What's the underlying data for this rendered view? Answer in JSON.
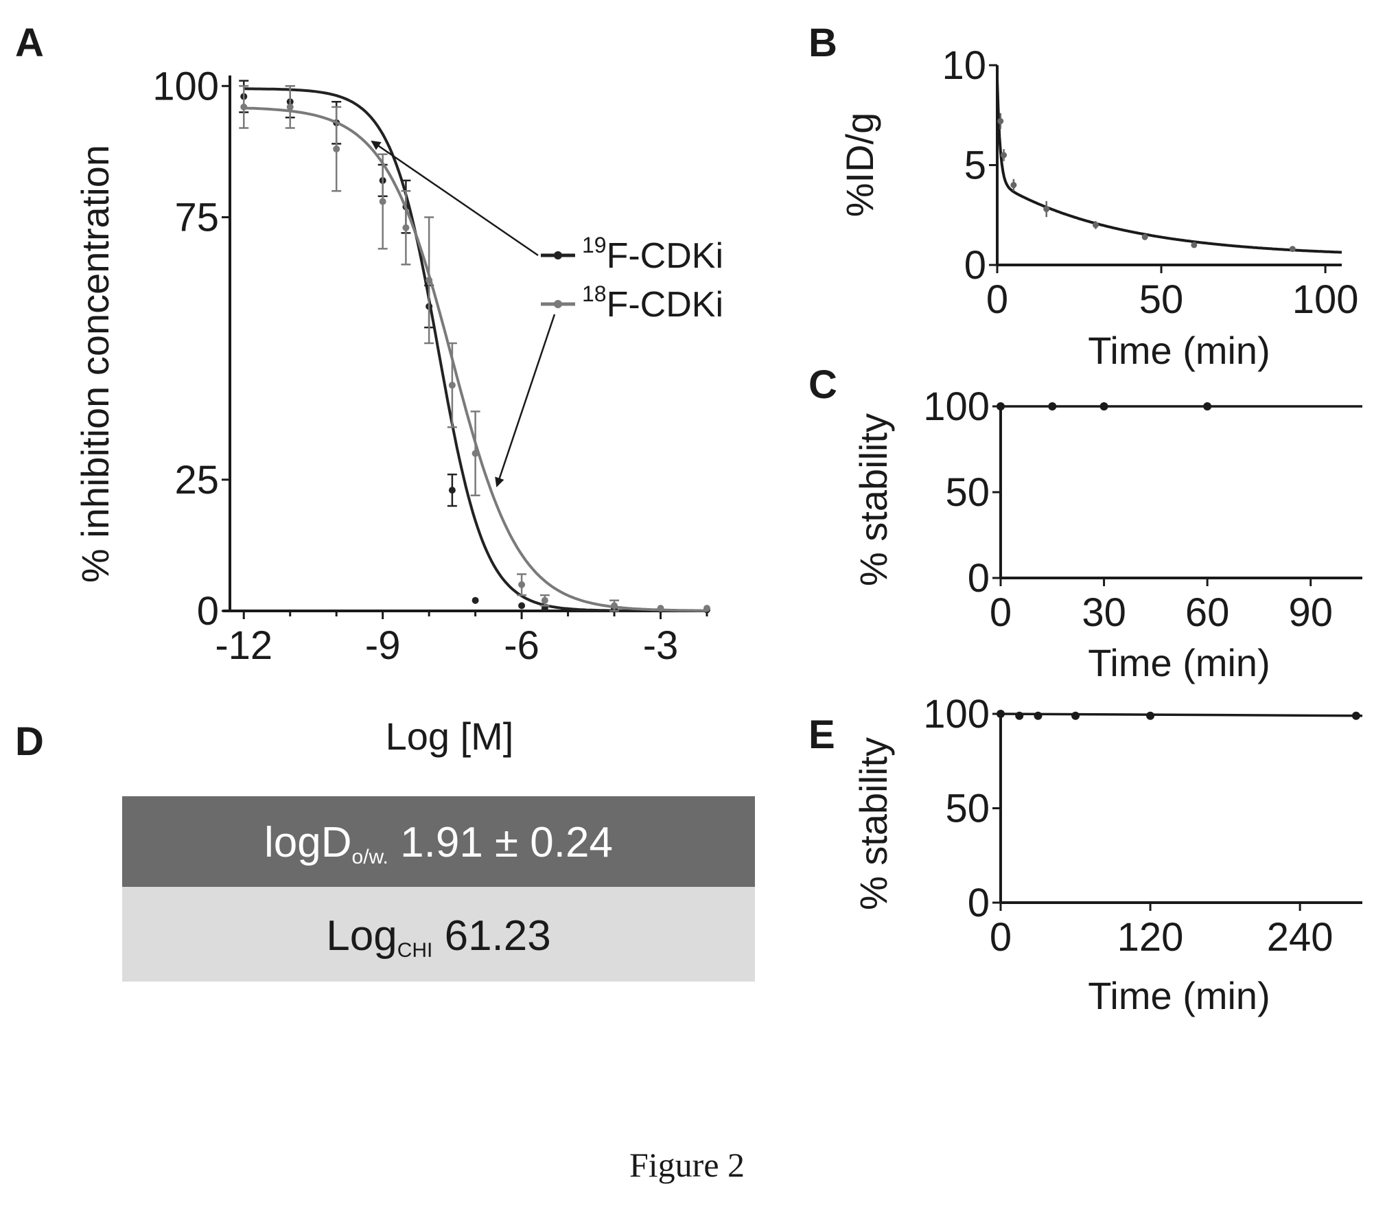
{
  "caption": "Figure 2",
  "colors": {
    "ink": "#1a1a1a",
    "series_19F": "#222222",
    "series_18F": "#7a7a7a",
    "table_top_bg": "#6b6b6b",
    "table_top_text": "#ffffff",
    "table_bottom_bg": "#dcdcdc"
  },
  "panels": {
    "A": {
      "letter": "A",
      "chart_data": {
        "type": "line",
        "title": "",
        "xlabel": "Log [M]",
        "ylabel": "% inhibition concentration",
        "xlim": [
          -12.3,
          -2
        ],
        "ylim": [
          0,
          102
        ],
        "xticks": [
          -12,
          -9,
          -6,
          -3
        ],
        "xtick_labels": [
          "-12",
          "-9",
          "-6",
          "-3"
        ],
        "yticks": [
          0,
          25,
          75,
          100
        ],
        "ytick_labels": [
          "0",
          "25",
          "75",
          "100"
        ],
        "grid": false,
        "legend": "right",
        "series": [
          {
            "name": "19F-CDKi",
            "name_sup": "19",
            "name_rest": "F-CDKi",
            "x": [
              -12,
              -11,
              -10,
              -9,
              -8.5,
              -8,
              -7.5,
              -7,
              -6,
              -5.5,
              -4,
              -3,
              -2
            ],
            "y": [
              98,
              97,
              93,
              82,
              77,
              58,
              23,
              2,
              1,
              0.5,
              0.5,
              0.3,
              0.2
            ],
            "err": [
              3,
              3,
              4,
              3,
              5,
              4,
              3,
              0,
              0,
              0,
              0,
              0,
              0
            ],
            "fit": {
              "top": 99.5,
              "bottom": 0,
              "log_ic50": -7.8,
              "hill": 0.85
            }
          },
          {
            "name": "18F-CDKi",
            "name_sup": "18",
            "name_rest": "F-CDKi",
            "x": [
              -12,
              -11,
              -10,
              -9,
              -8.5,
              -8,
              -7.5,
              -7,
              -6,
              -5.5,
              -4,
              -3,
              -2
            ],
            "y": [
              96,
              96,
              88,
              78,
              73,
              63,
              43,
              30,
              5,
              2,
              1,
              0.5,
              0.5
            ],
            "err": [
              4,
              4,
              8,
              9,
              7,
              12,
              8,
              8,
              2,
              1,
              1,
              0,
              0
            ],
            "fit": {
              "top": 96,
              "bottom": 0,
              "log_ic50": -7.5,
              "hill": 0.6
            }
          }
        ]
      }
    },
    "B": {
      "letter": "B",
      "chart_data": {
        "type": "line",
        "title": "",
        "xlabel": "Time (min)",
        "ylabel": "%ID/g",
        "xlim": [
          0,
          105
        ],
        "ylim": [
          0,
          10
        ],
        "xticks": [
          0,
          50,
          100
        ],
        "xtick_labels": [
          "0",
          "50",
          "100"
        ],
        "yticks": [
          0,
          5,
          10
        ],
        "ytick_labels": [
          "0",
          "5",
          "10"
        ],
        "grid": false,
        "series": [
          {
            "x": [
              1,
              2,
              5,
              15,
              30,
              45,
              60,
              90
            ],
            "y": [
              7.2,
              5.5,
              4.0,
              2.8,
              2.0,
              1.4,
              1.0,
              0.8
            ],
            "err": [
              0.4,
              0.3,
              0.3,
              0.4,
              0.2,
              0.15,
              0.1,
              0.1
            ]
          }
        ]
      }
    },
    "C": {
      "letter": "C",
      "chart_data": {
        "type": "line",
        "title": "",
        "xlabel": "Time (min)",
        "ylabel": "% stability",
        "xlim": [
          0,
          105
        ],
        "ylim": [
          0,
          100
        ],
        "xticks": [
          0,
          30,
          60,
          90
        ],
        "xtick_labels": [
          "0",
          "30",
          "60",
          "90"
        ],
        "yticks": [
          0,
          50,
          100
        ],
        "ytick_labels": [
          "0",
          "50",
          "100"
        ],
        "grid": false,
        "series": [
          {
            "x": [
              0,
              15,
              30,
              60
            ],
            "y": [
              100,
              100,
              100,
              100
            ]
          }
        ]
      }
    },
    "E": {
      "letter": "E",
      "chart_data": {
        "type": "line",
        "title": "",
        "xlabel": "Time (min)",
        "ylabel": "% stability",
        "xlim": [
          0,
          290
        ],
        "ylim": [
          0,
          100
        ],
        "xticks": [
          0,
          120,
          240
        ],
        "xtick_labels": [
          "0",
          "120",
          "240"
        ],
        "yticks": [
          0,
          50,
          100
        ],
        "ytick_labels": [
          "0",
          "50",
          "100"
        ],
        "grid": false,
        "series": [
          {
            "x": [
              0,
              15,
              30,
              60,
              120,
              285
            ],
            "y": [
              100,
              99,
              99,
              99,
              99,
              99
            ]
          }
        ]
      }
    },
    "D": {
      "letter": "D",
      "rows": [
        {
          "main": "logD",
          "sub": "o/w.",
          "value": "1.91 ± 0.24"
        },
        {
          "main": "Log",
          "sub": "CHI",
          "value": "61.23"
        }
      ]
    }
  }
}
